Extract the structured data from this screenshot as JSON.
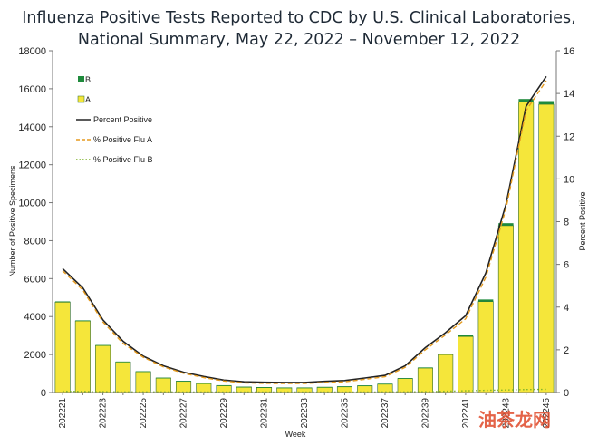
{
  "chart_data": {
    "type": "bar",
    "title_lines": [
      "Influenza Positive Tests Reported to CDC by U.S. Clinical Laboratories,",
      "National Summary, May 22, 2022 – November 12, 2022"
    ],
    "xlabel": "Week",
    "ylabel": "Number of Positive Specimens",
    "y2label": "Percent Positive",
    "ylim": [
      0,
      18000
    ],
    "yticks": [
      0,
      2000,
      4000,
      6000,
      8000,
      10000,
      12000,
      14000,
      16000,
      18000
    ],
    "y2lim": [
      0,
      16
    ],
    "y2ticks": [
      0,
      2,
      4,
      6,
      8,
      10,
      12,
      14,
      16
    ],
    "categories": [
      "202221",
      "202222",
      "202223",
      "202224",
      "202225",
      "202226",
      "202227",
      "202228",
      "202229",
      "202230",
      "202231",
      "202232",
      "202233",
      "202234",
      "202235",
      "202236",
      "202237",
      "202238",
      "202239",
      "202240",
      "202241",
      "202242",
      "202243",
      "202244",
      "202245"
    ],
    "xtick_labels": [
      "202221",
      "202223",
      "202225",
      "202227",
      "202229",
      "202231",
      "202233",
      "202235",
      "202237",
      "202239",
      "202241",
      "202243",
      "202245"
    ],
    "series": [
      {
        "name": "B",
        "kind": "bar",
        "color": "#1f8a3c",
        "values": [
          40,
          30,
          25,
          20,
          18,
          15,
          12,
          10,
          10,
          10,
          10,
          10,
          10,
          10,
          10,
          12,
          15,
          20,
          30,
          50,
          80,
          110,
          130,
          160,
          170
        ]
      },
      {
        "name": "A",
        "kind": "bar",
        "color": "#f5e63a",
        "values": [
          4760,
          3770,
          2475,
          1610,
          1102,
          765,
          598,
          480,
          370,
          290,
          270,
          250,
          250,
          280,
          310,
          358,
          445,
          740,
          1290,
          2000,
          2950,
          4790,
          8790,
          15300,
          15180
        ]
      },
      {
        "name": "Percent Positive",
        "kind": "line",
        "color": "#222222",
        "style": "solid",
        "values": [
          5.8,
          4.9,
          3.4,
          2.4,
          1.7,
          1.25,
          0.95,
          0.75,
          0.58,
          0.5,
          0.48,
          0.47,
          0.47,
          0.52,
          0.56,
          0.68,
          0.8,
          1.25,
          2.1,
          2.8,
          3.6,
          5.6,
          8.8,
          13.4,
          14.8
        ]
      },
      {
        "name": "% Positive Flu A",
        "kind": "line",
        "color": "#e59a1e",
        "style": "dashed",
        "values": [
          5.7,
          4.8,
          3.3,
          2.3,
          1.65,
          1.2,
          0.9,
          0.7,
          0.54,
          0.45,
          0.43,
          0.42,
          0.42,
          0.47,
          0.5,
          0.62,
          0.74,
          1.18,
          2.0,
          2.7,
          3.45,
          5.4,
          8.6,
          13.2,
          14.6
        ]
      },
      {
        "name": "% Positive Flu B",
        "kind": "line",
        "color": "#7fb32a",
        "style": "dotted",
        "values": [
          0.06,
          0.05,
          0.04,
          0.03,
          0.03,
          0.03,
          0.02,
          0.02,
          0.02,
          0.02,
          0.02,
          0.02,
          0.02,
          0.02,
          0.02,
          0.02,
          0.03,
          0.03,
          0.04,
          0.06,
          0.08,
          0.1,
          0.12,
          0.14,
          0.15
        ]
      }
    ],
    "legend": {
      "position": "top-left",
      "items": [
        {
          "label": "B",
          "swatch": "bar-b"
        },
        {
          "label": "A",
          "swatch": "bar-a"
        },
        {
          "label": "Percent Positive",
          "swatch": "line-solid"
        },
        {
          "label": "% Positive Flu A",
          "swatch": "line-dashed"
        },
        {
          "label": "% Positive Flu B",
          "swatch": "line-dotted"
        }
      ]
    },
    "grid": false
  },
  "watermark": {
    "text": "油茶龙网"
  }
}
